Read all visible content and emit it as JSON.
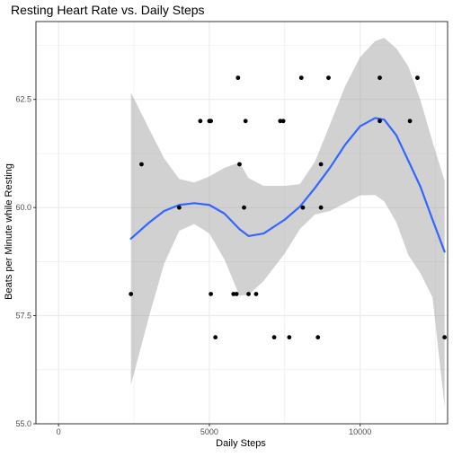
{
  "chart_data": {
    "type": "scatter",
    "title": "Resting Heart Rate vs. Daily Steps",
    "xlabel": "Daily Steps",
    "ylabel": "Beats per Minute while Resting",
    "xlim": [
      -750,
      12900
    ],
    "ylim": [
      55.0,
      64.3
    ],
    "x_ticks": [
      0,
      5000,
      10000
    ],
    "x_tick_labels": [
      "0",
      "5000",
      "10000"
    ],
    "y_ticks": [
      55.0,
      57.5,
      60.0,
      62.5
    ],
    "y_tick_labels": [
      "55.0",
      "57.5",
      "60.0",
      "62.5"
    ],
    "grid": true,
    "points": [
      {
        "x": 2400,
        "y": 58.0
      },
      {
        "x": 2750,
        "y": 61.0
      },
      {
        "x": 4000,
        "y": 60.0
      },
      {
        "x": 4700,
        "y": 62.0
      },
      {
        "x": 5000,
        "y": 62.0
      },
      {
        "x": 5050,
        "y": 62.0
      },
      {
        "x": 5050,
        "y": 58.0
      },
      {
        "x": 5200,
        "y": 57.0
      },
      {
        "x": 5800,
        "y": 58.0
      },
      {
        "x": 5900,
        "y": 58.0
      },
      {
        "x": 5950,
        "y": 63.0
      },
      {
        "x": 6000,
        "y": 61.0
      },
      {
        "x": 6150,
        "y": 60.0
      },
      {
        "x": 6200,
        "y": 62.0
      },
      {
        "x": 6300,
        "y": 58.0
      },
      {
        "x": 6550,
        "y": 58.0
      },
      {
        "x": 7150,
        "y": 57.0
      },
      {
        "x": 7350,
        "y": 62.0
      },
      {
        "x": 7450,
        "y": 62.0
      },
      {
        "x": 7650,
        "y": 57.0
      },
      {
        "x": 8050,
        "y": 63.0
      },
      {
        "x": 8100,
        "y": 60.0
      },
      {
        "x": 8600,
        "y": 57.0
      },
      {
        "x": 8700,
        "y": 61.0
      },
      {
        "x": 8700,
        "y": 60.0
      },
      {
        "x": 8950,
        "y": 63.0
      },
      {
        "x": 10650,
        "y": 63.0
      },
      {
        "x": 10650,
        "y": 62.0
      },
      {
        "x": 11650,
        "y": 62.0
      },
      {
        "x": 11900,
        "y": 63.0
      },
      {
        "x": 12800,
        "y": 57.0
      }
    ],
    "smooth": {
      "x": [
        2400,
        3000,
        3500,
        4000,
        4500,
        5000,
        5500,
        6000,
        6300,
        6800,
        7500,
        8000,
        8500,
        9000,
        9500,
        10000,
        10500,
        10800,
        11200,
        11600,
        12000,
        12400,
        12800
      ],
      "y": [
        59.28,
        59.65,
        59.92,
        60.06,
        60.1,
        60.06,
        59.86,
        59.5,
        59.34,
        59.4,
        59.72,
        60.02,
        60.45,
        60.92,
        61.45,
        61.88,
        62.07,
        62.03,
        61.67,
        61.08,
        60.48,
        59.72,
        58.98
      ]
    },
    "ci_upper": [
      62.66,
      61.82,
      61.14,
      60.66,
      60.58,
      60.72,
      60.92,
      61.04,
      60.68,
      60.5,
      60.5,
      60.54,
      61.06,
      61.92,
      62.8,
      63.48,
      63.85,
      63.92,
      63.68,
      63.26,
      62.48,
      61.52,
      60.62
    ],
    "ci_lower": [
      55.9,
      57.48,
      58.7,
      59.46,
      59.62,
      59.4,
      58.8,
      57.96,
      57.98,
      58.3,
      58.94,
      59.5,
      59.84,
      59.92,
      60.1,
      60.28,
      60.29,
      60.14,
      59.66,
      58.9,
      58.48,
      57.92,
      55.4
    ],
    "colors": {
      "points": "#000000",
      "smooth_line": "#3366FF",
      "ribbon": "#999999",
      "grid": "#ebebeb",
      "panel_border": "#333333",
      "axis_text": "#4d4d4d"
    }
  }
}
